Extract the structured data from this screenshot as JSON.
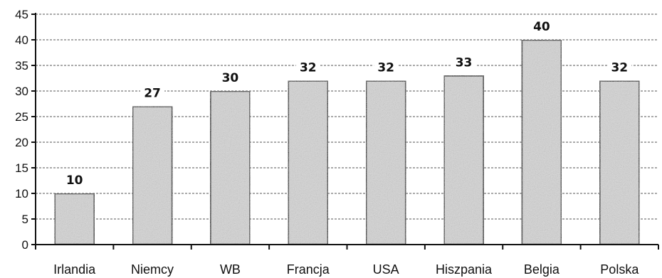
{
  "chart_data": {
    "type": "bar",
    "title": "",
    "xlabel": "",
    "ylabel": "",
    "categories": [
      "Irlandia",
      "Niemcy",
      "WB",
      "Francja",
      "USA",
      "Hiszpania",
      "Belgia",
      "Polska"
    ],
    "values": [
      10,
      27,
      30,
      32,
      32,
      33,
      40,
      32
    ],
    "data_labels": [
      "10",
      "27",
      "30",
      "32",
      "32",
      "33",
      "40",
      "32"
    ],
    "ylim": [
      0,
      45
    ],
    "yticks": [
      0,
      5,
      10,
      15,
      20,
      25,
      30,
      35,
      40,
      45
    ],
    "grid": true,
    "legend": "none",
    "colors": {
      "bar_fill": "#d6d6d6",
      "bar_stroke": "#111111",
      "grid": "#555555"
    }
  }
}
